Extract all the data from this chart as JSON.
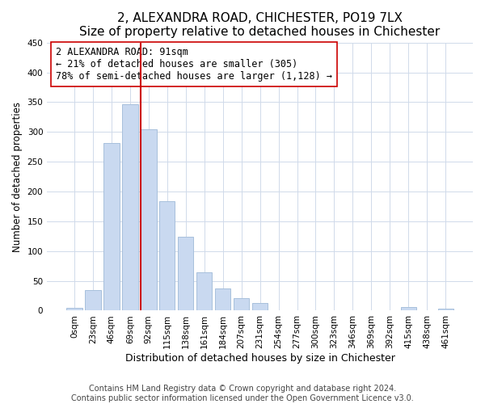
{
  "title": "2, ALEXANDRA ROAD, CHICHESTER, PO19 7LX",
  "subtitle": "Size of property relative to detached houses in Chichester",
  "xlabel": "Distribution of detached houses by size in Chichester",
  "ylabel": "Number of detached properties",
  "bar_labels": [
    "0sqm",
    "23sqm",
    "46sqm",
    "69sqm",
    "92sqm",
    "115sqm",
    "138sqm",
    "161sqm",
    "184sqm",
    "207sqm",
    "231sqm",
    "254sqm",
    "277sqm",
    "300sqm",
    "323sqm",
    "346sqm",
    "369sqm",
    "392sqm",
    "415sqm",
    "438sqm",
    "461sqm"
  ],
  "bar_heights": [
    5,
    35,
    282,
    347,
    305,
    184,
    124,
    65,
    37,
    21,
    13,
    0,
    0,
    0,
    0,
    0,
    0,
    0,
    6,
    0,
    3
  ],
  "bar_color": "#c9d9f0",
  "bar_edge_color": "#a8c0dc",
  "marker_line_color": "#cc0000",
  "annotation_text": "2 ALEXANDRA ROAD: 91sqm\n← 21% of detached houses are smaller (305)\n78% of semi-detached houses are larger (1,128) →",
  "annotation_box_facecolor": "#ffffff",
  "annotation_box_edgecolor": "#cc0000",
  "ylim": [
    0,
    450
  ],
  "yticks": [
    0,
    50,
    100,
    150,
    200,
    250,
    300,
    350,
    400,
    450
  ],
  "footer1": "Contains HM Land Registry data © Crown copyright and database right 2024.",
  "footer2": "Contains public sector information licensed under the Open Government Licence v3.0.",
  "title_fontsize": 11,
  "xlabel_fontsize": 9,
  "ylabel_fontsize": 8.5,
  "tick_fontsize": 7.5,
  "footer_fontsize": 7,
  "annotation_fontsize": 8.5,
  "grid_color": "#d0daea"
}
